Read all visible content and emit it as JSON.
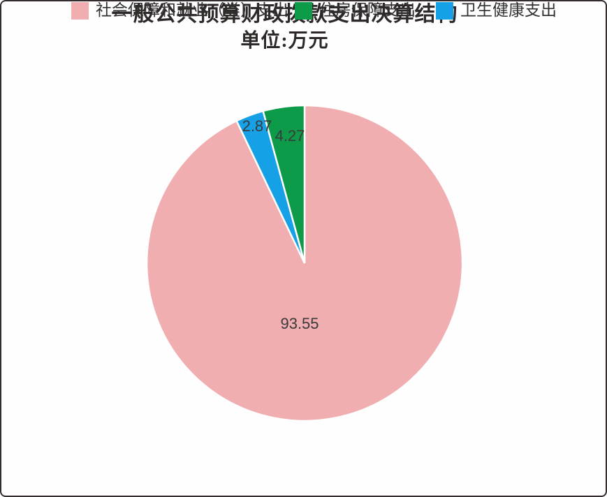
{
  "chart": {
    "title": "一般公共预算财政拨款支出决算结构",
    "subtitle_unit": "单位:万元"
  },
  "chart_data": {
    "type": "pie",
    "title": "一般公共预算财政拨款支出决算结构",
    "subtitle": "单位:万元",
    "slices": [
      {
        "label": "社会保障和就业（类）支出",
        "value": 93.55,
        "color": "#F1AEB1"
      },
      {
        "label": "住房保障支出",
        "value": 4.27,
        "color": "#0D9B4A"
      },
      {
        "label": "卫生健康支出",
        "value": 2.87,
        "color": "#16A0E6"
      }
    ],
    "value_labels": [
      "93.55",
      "4.27",
      "2.87"
    ],
    "clockwise_order_from_top": [
      "社会保障和就业（类）支出",
      "卫生健康支出",
      "住房保障支出"
    ],
    "start_angle_deg": 0,
    "direction": "clockwise",
    "legend_position": "bottom",
    "separator_color": "#FFFFFF",
    "label_color": "#3A3A3A"
  }
}
